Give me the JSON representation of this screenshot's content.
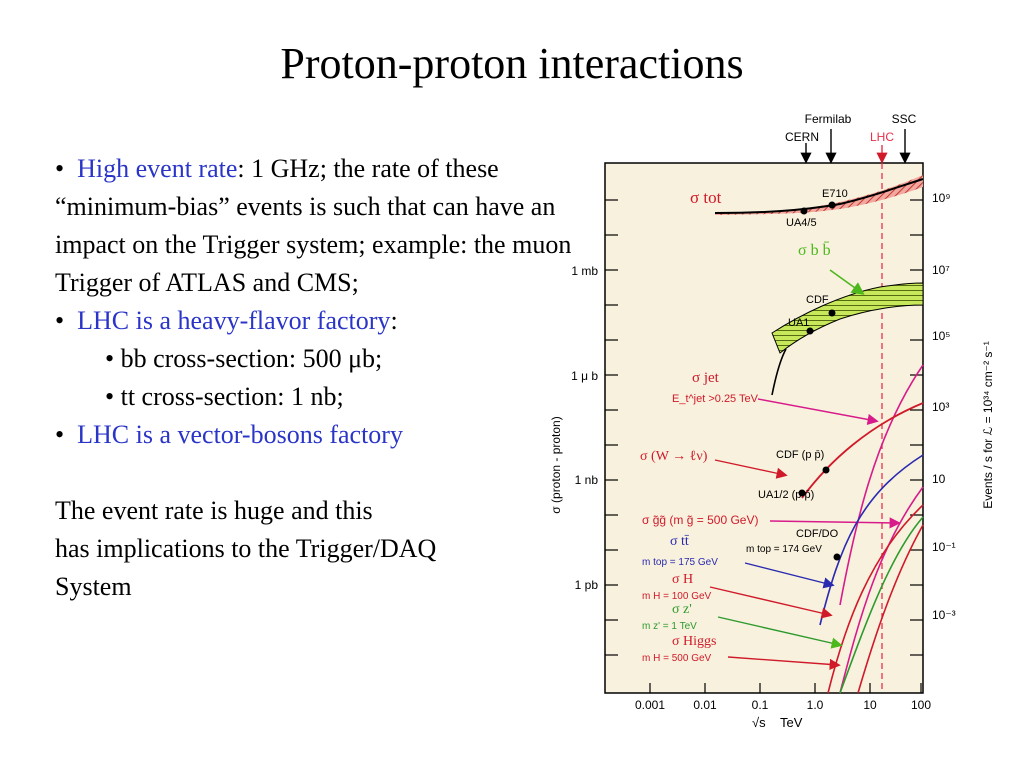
{
  "slide": {
    "title": "Proton-proton interactions",
    "bullets": {
      "b1_highlight": "High event rate",
      "b1_rest": ": 1 GHz; the rate of these “minimum-bias” events is such that can have an impact on the Trigger system; example: the muon Trigger of ATLAS and CMS;",
      "b2_highlight": "LHC is a heavy-flavor factory",
      "b2_rest": ":",
      "sub1": "• bb cross-section: 500 μb;",
      "sub2": "• tt cross-section: 1 nb;",
      "b3_highlight": "LHC is a vector-bosons factory",
      "bullet_mark": "•"
    },
    "closing_line1": "The event rate is huge and this",
    "closing_line2": "has implications to the Trigger/DAQ",
    "closing_line3": "System"
  },
  "colors": {
    "highlight": "#2a35c8",
    "plot_bg": "#f8f1de",
    "lhc_line": "#e8304a"
  },
  "chart_data": {
    "type": "line",
    "x_scale": "log",
    "x_ticks": [
      "0.001",
      "0.01",
      "0.1",
      "1.0",
      "10",
      "100"
    ],
    "x_label_sym": "√s",
    "x_label_unit": "TeV",
    "y_label": "σ (proton - proton)",
    "y_left_ticks": [
      "1 mb",
      "1 μ b",
      "1 nb",
      "1 pb"
    ],
    "y_right_ticks": [
      "10⁹",
      "10⁷",
      "10⁵",
      "10³",
      "10",
      "10⁻¹",
      "10⁻³"
    ],
    "y_right_label": "Events / s for ℒ = 10³⁴ cm⁻² s⁻¹",
    "machines": [
      {
        "name": "CERN",
        "sqrt_s_TeV": 0.63
      },
      {
        "name": "Fermilab",
        "sqrt_s_TeV": 1.8
      },
      {
        "name": "LHC",
        "sqrt_s_TeV": 14
      },
      {
        "name": "SSC",
        "sqrt_s_TeV": 40
      }
    ],
    "curve_labels": {
      "tot": "σ tot",
      "bb": "σ b b̄",
      "jet": "σ jet",
      "jet_cut": "E_t^jet >0.25 TeV",
      "w": "σ (W → ℓν)",
      "gg": "σ g̃g̃ (m g̃ = 500 GeV)",
      "tt": "σ tt̄",
      "tt_mass": "m top = 175 GeV",
      "h": "σ H",
      "h_mass": "m H = 100 GeV",
      "zp": "σ z'",
      "zp_mass": "m z' = 1 TeV",
      "higgs": "σ Higgs",
      "higgs_mass": "m H = 500 GeV"
    },
    "experiment_labels": [
      "E710",
      "UA4/5",
      "CDF",
      "UA1",
      "CDF (p p̄)",
      "UA1/2 (p p̄)",
      "CDF/DO",
      "m top = 174 GeV"
    ]
  }
}
